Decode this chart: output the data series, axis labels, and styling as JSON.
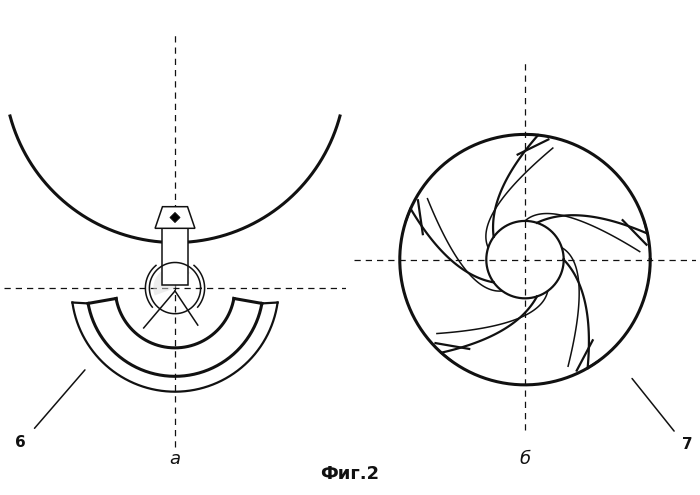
{
  "bg_color": "#ffffff",
  "line_color": "#111111",
  "fig_title": "Фиг.2",
  "label_a": "а",
  "label_b": "б",
  "label_6": "6",
  "label_7": "7",
  "lw_thick": 2.2,
  "lw_med": 1.6,
  "lw_thin": 1.1,
  "lw_dash": 0.9
}
